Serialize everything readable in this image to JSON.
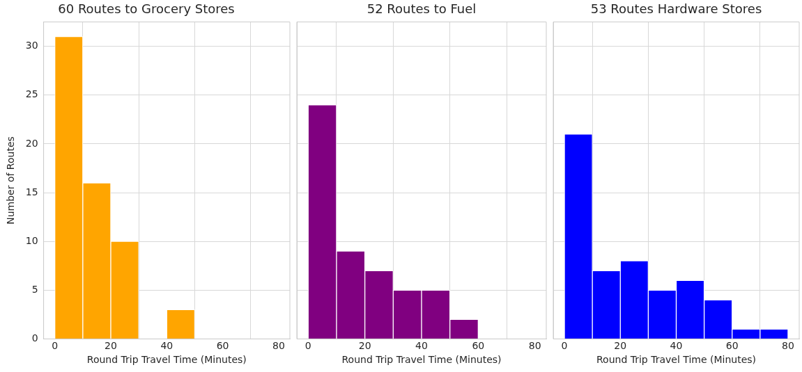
{
  "chart_data": [
    {
      "type": "histogram",
      "title": "60 Routes to Grocery Stores",
      "xlabel": "Round Trip Travel Time (Minutes)",
      "ylabel": "Number of Routes",
      "bins": [
        0,
        10,
        20,
        30,
        40,
        50
      ],
      "values": [
        31,
        16,
        10,
        0,
        3
      ],
      "color": "#ffa500",
      "xlim": [
        -4,
        84
      ],
      "xticks": [
        0,
        20,
        40,
        60,
        80
      ],
      "ylim": [
        0,
        32.5
      ],
      "yticks": [
        0,
        5,
        10,
        15,
        20,
        25,
        30
      ],
      "grid": true
    },
    {
      "type": "histogram",
      "title": "52 Routes to Fuel",
      "xlabel": "Round Trip Travel Time (Minutes)",
      "bins": [
        0,
        10,
        20,
        30,
        40,
        50,
        60
      ],
      "values": [
        24,
        9,
        7,
        5,
        5,
        2
      ],
      "color": "#800080",
      "xlim": [
        -4,
        84
      ],
      "xticks": [
        0,
        20,
        40,
        60,
        80
      ],
      "ylim": [
        0,
        32.5
      ],
      "yticks": [
        0,
        5,
        10,
        15,
        20,
        25,
        30
      ],
      "grid": true,
      "tick_labels": "x"
    },
    {
      "type": "histogram",
      "title": "53 Routes Hardware Stores",
      "xlabel": "Round Trip Travel Time (Minutes)",
      "bins": [
        0,
        10,
        20,
        30,
        40,
        50,
        60,
        70,
        80
      ],
      "values": [
        21,
        7,
        8,
        5,
        6,
        4,
        1,
        1
      ],
      "color": "#0000ff",
      "xlim": [
        -4,
        84
      ],
      "xticks": [
        0,
        20,
        40,
        60,
        80
      ],
      "ylim": [
        0,
        32.5
      ],
      "yticks": [
        0,
        5,
        10,
        15,
        20,
        25,
        30
      ],
      "grid": true,
      "tick_labels": "x"
    }
  ]
}
